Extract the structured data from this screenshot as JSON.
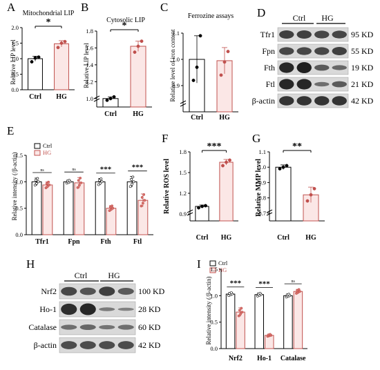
{
  "colors": {
    "ctrl": "#000000",
    "hg": "#c0504d",
    "hg_fill": "#fbe7e6",
    "dot_hg": "#d9736d"
  },
  "panels": {
    "A": {
      "label": "A",
      "title": "Mitochondrial LIP",
      "ylabel": "Relative LIP level"
    },
    "B": {
      "label": "B",
      "title": "Cytosolic LIP",
      "ylabel": "Relative LIP level"
    },
    "C": {
      "label": "C",
      "title": "Ferrozine assays",
      "ylabel": "Relative level of iron content"
    },
    "D": {
      "label": "D",
      "groups": [
        "Ctrl",
        "HG"
      ],
      "rows": [
        {
          "name": "Tfr1",
          "kd": "95 KD"
        },
        {
          "name": "Fpn",
          "kd": "55 KD"
        },
        {
          "name": "Fth",
          "kd": "19 KD"
        },
        {
          "name": "Ftl",
          "kd": "21 KD"
        },
        {
          "name": "β-actin",
          "kd": "42 KD"
        }
      ]
    },
    "E": {
      "label": "E",
      "ylabel": "Relative intensity (/β-actin)",
      "legend": [
        "Ctrl",
        "HG"
      ]
    },
    "F": {
      "label": "F",
      "ylabel": "Relative ROS level"
    },
    "G": {
      "label": "G",
      "ylabel": "Relative MMP level"
    },
    "H": {
      "label": "H",
      "groups": [
        "Ctrl",
        "HG"
      ],
      "rows": [
        {
          "name": "Nrf2",
          "kd": "100 KD"
        },
        {
          "name": "Ho-1",
          "kd": "28 KD"
        },
        {
          "name": "Catalase",
          "kd": "60 KD"
        },
        {
          "name": "β-actin",
          "kd": "42 KD"
        }
      ]
    },
    "I": {
      "label": "I",
      "ylabel": "Relative intensity (/β-actin)",
      "legend": [
        "Ctrl",
        "HG"
      ]
    }
  },
  "chart_data": [
    {
      "id": "A",
      "type": "bar",
      "categories": [
        "Ctrl",
        "HG"
      ],
      "values": [
        1.0,
        1.48
      ],
      "errors": [
        0.08,
        0.1
      ],
      "points": [
        [
          0.9,
          1.02,
          1.05
        ],
        [
          1.36,
          1.5,
          1.55
        ]
      ],
      "ylim": [
        0,
        2.0
      ],
      "yticks": [
        0.0,
        0.5,
        1.0,
        1.5,
        2.0
      ],
      "ytick_labels": [
        "0.0",
        "0.5",
        "1.0",
        "1.5",
        "2.0"
      ],
      "sig": "*"
    },
    {
      "id": "B",
      "type": "bar",
      "categories": [
        "Ctrl",
        "HG"
      ],
      "values": [
        1.0,
        1.62
      ],
      "errors": [
        0.02,
        0.06
      ],
      "points": [
        [
          0.98,
          1.0,
          1.02
        ],
        [
          1.55,
          1.62,
          1.68
        ]
      ],
      "ylim": [
        0.9,
        1.8
      ],
      "axis_break": true,
      "yticks": [
        1.0,
        1.2,
        1.4,
        1.6,
        1.8
      ],
      "ytick_labels": [
        "1.0",
        "1.2",
        "1.4",
        "1.6",
        "1.8"
      ],
      "sig": "*"
    },
    {
      "id": "C",
      "type": "bar",
      "categories": [
        "Ctrl",
        "HG"
      ],
      "values": [
        1.0,
        0.995
      ],
      "errors": [
        0.09,
        0.05
      ],
      "points": [
        [
          0.92,
          0.97,
          1.09
        ],
        [
          0.94,
          0.99,
          1.03
        ]
      ],
      "ylim": [
        0.8,
        1.1
      ],
      "axis_break": true,
      "yticks": [
        0.9,
        1.0,
        1.1
      ],
      "ytick_labels": [
        "0.9",
        "1.0",
        "1.1"
      ]
    },
    {
      "id": "E",
      "type": "bar",
      "categories": [
        "Tfr1",
        "Fpn",
        "Fth",
        "Ftl"
      ],
      "series": [
        {
          "name": "Ctrl",
          "values": [
            1.0,
            1.0,
            1.0,
            1.0
          ],
          "errors": [
            0.07,
            0.03,
            0.06,
            0.1
          ]
        },
        {
          "name": "HG",
          "values": [
            0.94,
            0.98,
            0.5,
            0.65
          ],
          "errors": [
            0.06,
            0.1,
            0.05,
            0.12
          ]
        }
      ],
      "ylim": [
        0,
        1.5
      ],
      "yticks": [
        0.0,
        0.5,
        1.0,
        1.5
      ],
      "ytick_labels": [
        "0.0",
        "0.5",
        "1.0",
        "1.5"
      ],
      "sig": [
        "ns",
        "ns",
        "***",
        "***"
      ]
    },
    {
      "id": "F",
      "type": "bar",
      "categories": [
        "Ctrl",
        "HG"
      ],
      "values": [
        1.01,
        1.65
      ],
      "errors": [
        0.02,
        0.04
      ],
      "points": [
        [
          0.99,
          1.01,
          1.02
        ],
        [
          1.6,
          1.65,
          1.68
        ]
      ],
      "ylim": [
        0.8,
        1.8
      ],
      "axis_break": true,
      "yticks": [
        0.9,
        1.2,
        1.5,
        1.8
      ],
      "ytick_labels": [
        "0.9",
        "1.2",
        "1.5",
        "1.8"
      ],
      "sig": "***"
    },
    {
      "id": "G",
      "type": "bar",
      "categories": [
        "Ctrl",
        "HG"
      ],
      "values": [
        1.0,
        0.82
      ],
      "errors": [
        0.015,
        0.05
      ],
      "points": [
        [
          0.99,
          1.0,
          1.01
        ],
        [
          0.78,
          0.82,
          0.86
        ]
      ],
      "ylim": [
        0.65,
        1.1
      ],
      "axis_break": true,
      "yticks": [
        0.7,
        0.8,
        0.9,
        1.0,
        1.1
      ],
      "ytick_labels": [
        "0.7",
        "0.8",
        "0.9",
        "1.0",
        "1.1"
      ],
      "sig": "**"
    },
    {
      "id": "I",
      "type": "bar",
      "categories": [
        "Nrf2",
        "Ho-1",
        "Catalase"
      ],
      "series": [
        {
          "name": "Ctrl",
          "values": [
            1.03,
            1.02,
            1.0
          ],
          "errors": [
            0.03,
            0.03,
            0.03
          ]
        },
        {
          "name": "HG",
          "values": [
            0.69,
            0.25,
            1.08
          ],
          "errors": [
            0.08,
            0.02,
            0.04
          ]
        }
      ],
      "ylim": [
        0,
        1.5
      ],
      "yticks": [
        0.0,
        0.5,
        1.0,
        1.5
      ],
      "ytick_labels": [
        "0.0",
        "0.5",
        "1.0",
        "1.5"
      ],
      "sig": [
        "***",
        "***",
        "ns"
      ]
    }
  ]
}
